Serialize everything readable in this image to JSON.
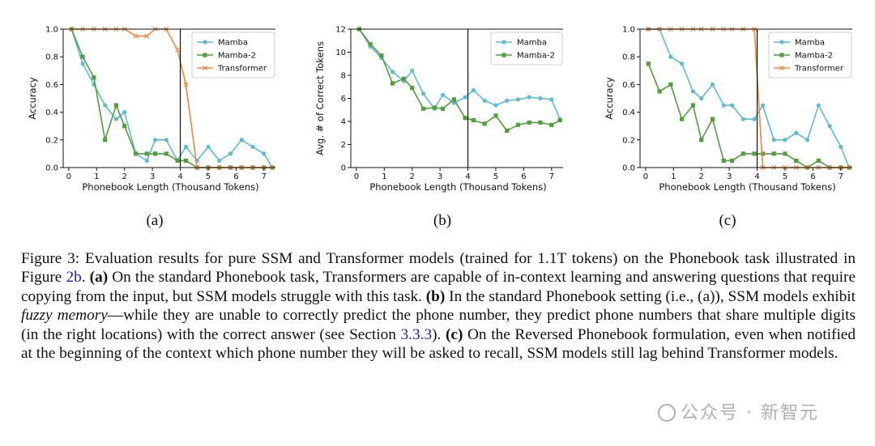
{
  "chart_data": [
    {
      "id": "a",
      "type": "line",
      "xlabel": "Phonebook Length (Thousand Tokens)",
      "ylabel": "Accuracy",
      "xlim": [
        -0.2,
        7.5
      ],
      "ylim": [
        0.0,
        1.0
      ],
      "xticks": [
        0,
        1,
        2,
        3,
        4,
        5,
        6,
        7
      ],
      "yticks": [
        0.0,
        0.2,
        0.4,
        0.6,
        0.8,
        1.0
      ],
      "ytick_labels": [
        "0.0",
        "0.2",
        "0.4",
        "0.6",
        "0.8",
        "1.0"
      ],
      "vline": 4,
      "legend": "top-right",
      "series": [
        {
          "name": "Mamba",
          "color": "#5bbcd6",
          "marker": "circle",
          "x": [
            0.1,
            0.5,
            0.9,
            1.3,
            1.7,
            2.0,
            2.4,
            2.8,
            3.1,
            3.5,
            3.9,
            4.2,
            4.6,
            5.0,
            5.4,
            5.8,
            6.2,
            6.6,
            7.0,
            7.3
          ],
          "y": [
            1.0,
            0.75,
            0.6,
            0.45,
            0.35,
            0.4,
            0.1,
            0.05,
            0.2,
            0.2,
            0.05,
            0.15,
            0.05,
            0.15,
            0.05,
            0.1,
            0.2,
            0.15,
            0.1,
            0.0
          ]
        },
        {
          "name": "Mamba-2",
          "color": "#4f9f3a",
          "marker": "square",
          "x": [
            0.1,
            0.5,
            0.9,
            1.3,
            1.7,
            2.0,
            2.4,
            2.8,
            3.1,
            3.5,
            3.9,
            4.2,
            4.6,
            5.0,
            5.4,
            5.8,
            6.2,
            6.6,
            7.0,
            7.3
          ],
          "y": [
            1.0,
            0.8,
            0.65,
            0.2,
            0.45,
            0.3,
            0.1,
            0.1,
            0.1,
            0.1,
            0.05,
            0.05,
            0.0,
            0.0,
            0.0,
            0.0,
            0.0,
            0.0,
            0.0,
            0.0
          ]
        },
        {
          "name": "Transformer",
          "color": "#f0883e",
          "marker": "x",
          "x": [
            0.1,
            0.5,
            0.9,
            1.3,
            1.7,
            2.0,
            2.4,
            2.8,
            3.1,
            3.5,
            3.9,
            4.2,
            4.6,
            5.0,
            5.4,
            5.8,
            6.2,
            6.6,
            7.0,
            7.3
          ],
          "y": [
            1.0,
            1.0,
            1.0,
            1.0,
            1.0,
            1.0,
            0.95,
            0.95,
            1.0,
            1.0,
            0.85,
            0.6,
            0.0,
            0.0,
            0.0,
            0.0,
            0.0,
            0.0,
            0.0,
            0.0
          ]
        }
      ],
      "sublabel": "(a)"
    },
    {
      "id": "b",
      "type": "line",
      "xlabel": "Phonebook Length (Thousand Tokens)",
      "ylabel": "Avg. # of Correct Tokens",
      "xlim": [
        -0.2,
        7.5
      ],
      "ylim": [
        0,
        12
      ],
      "xticks": [
        0,
        1,
        2,
        3,
        4,
        5,
        6,
        7
      ],
      "yticks": [
        0,
        2,
        4,
        6,
        8,
        10,
        12
      ],
      "ytick_labels": [
        "0",
        "2",
        "4",
        "6",
        "8",
        "10",
        "12"
      ],
      "vline": 4,
      "legend": "top-right",
      "series": [
        {
          "name": "Mamba",
          "color": "#5bbcd6",
          "marker": "circle",
          "x": [
            0.1,
            0.5,
            0.9,
            1.3,
            1.7,
            2.0,
            2.4,
            2.8,
            3.1,
            3.5,
            3.9,
            4.2,
            4.6,
            5.0,
            5.4,
            5.8,
            6.2,
            6.6,
            7.0,
            7.3
          ],
          "y": [
            12.0,
            10.5,
            9.5,
            8.3,
            7.5,
            8.4,
            6.4,
            5.1,
            6.3,
            5.6,
            6.1,
            6.7,
            5.8,
            5.4,
            5.8,
            5.9,
            6.1,
            6.0,
            5.9,
            4.2
          ]
        },
        {
          "name": "Mamba-2",
          "color": "#4f9f3a",
          "marker": "square",
          "x": [
            0.1,
            0.5,
            0.9,
            1.3,
            1.7,
            2.0,
            2.4,
            2.8,
            3.1,
            3.5,
            3.9,
            4.2,
            4.6,
            5.0,
            5.4,
            5.8,
            6.2,
            6.6,
            7.0,
            7.3
          ],
          "y": [
            12.0,
            10.7,
            9.7,
            7.3,
            7.7,
            6.9,
            5.1,
            5.2,
            5.1,
            5.9,
            4.3,
            4.1,
            3.8,
            4.5,
            3.2,
            3.7,
            3.9,
            3.9,
            3.7,
            4.1
          ]
        }
      ],
      "sublabel": "(b)"
    },
    {
      "id": "c",
      "type": "line",
      "xlabel": "Phonebook Length (Thousand Tokens)",
      "ylabel": "Accuracy",
      "xlim": [
        -0.2,
        7.5
      ],
      "ylim": [
        0.0,
        1.0
      ],
      "xticks": [
        0,
        1,
        2,
        3,
        4,
        5,
        6,
        7
      ],
      "yticks": [
        0.0,
        0.2,
        0.4,
        0.6,
        0.8,
        1.0
      ],
      "ytick_labels": [
        "0.0",
        "0.2",
        "0.4",
        "0.6",
        "0.8",
        "1.0"
      ],
      "vline": 4,
      "legend": "top-right",
      "series": [
        {
          "name": "Mamba",
          "color": "#5bbcd6",
          "marker": "circle",
          "x": [
            0.1,
            0.5,
            0.9,
            1.3,
            1.7,
            2.0,
            2.4,
            2.8,
            3.1,
            3.5,
            3.9,
            4.2,
            4.6,
            5.0,
            5.4,
            5.8,
            6.2,
            6.6,
            7.0,
            7.3
          ],
          "y": [
            1.0,
            1.0,
            0.8,
            0.75,
            0.55,
            0.5,
            0.6,
            0.45,
            0.45,
            0.35,
            0.35,
            0.45,
            0.2,
            0.2,
            0.25,
            0.2,
            0.45,
            0.3,
            0.15,
            0.0
          ]
        },
        {
          "name": "Mamba-2",
          "color": "#4f9f3a",
          "marker": "square",
          "x": [
            0.1,
            0.5,
            0.9,
            1.3,
            1.7,
            2.0,
            2.4,
            2.8,
            3.1,
            3.5,
            3.9,
            4.2,
            4.6,
            5.0,
            5.4,
            5.8,
            6.2,
            6.6,
            7.0,
            7.3
          ],
          "y": [
            0.75,
            0.55,
            0.6,
            0.35,
            0.45,
            0.2,
            0.35,
            0.05,
            0.05,
            0.1,
            0.1,
            0.1,
            0.1,
            0.1,
            0.05,
            0.0,
            0.05,
            0.0,
            0.0,
            0.0
          ]
        },
        {
          "name": "Transformer",
          "color": "#f0883e",
          "marker": "x",
          "x": [
            0.1,
            0.5,
            0.9,
            1.3,
            1.7,
            2.0,
            2.4,
            2.8,
            3.1,
            3.5,
            3.9,
            4.2,
            4.6,
            5.0,
            5.4,
            5.8,
            6.2,
            6.6,
            7.0,
            7.3
          ],
          "y": [
            1.0,
            1.0,
            1.0,
            1.0,
            1.0,
            1.0,
            1.0,
            1.0,
            1.0,
            1.0,
            1.0,
            0.0,
            0.0,
            0.0,
            0.0,
            0.0,
            0.0,
            0.0,
            0.0,
            0.0
          ]
        }
      ],
      "sublabel": "(c)"
    }
  ],
  "caption": {
    "fig_label": "Figure 3:",
    "text1": " Evaluation results for pure SSM and Transformer models (trained for 1.1T tokens) on the Phonebook task illustrated in Figure ",
    "ref_2b": "2b",
    "text2": ". ",
    "a_label": "(a)",
    "text3": " On the standard Phonebook task, Transformers are capable of in-context learning and answering questions that require copying from the input, but SSM models struggle with this task. ",
    "b_label": "(b)",
    "text4": " In the standard Phonebook setting (i.e., (a)), SSM models exhibit ",
    "fuzzy": "fuzzy memory",
    "text5": "—while they are unable to correctly predict the phone number, they predict phone numbers that share multiple digits (in the right locations) with the correct answer (see Section ",
    "ref_section": "3.3.3",
    "text6": "). ",
    "c_label": "(c)",
    "text7": " On the Reversed Phonebook formulation, even when notified at the beginning of the context which phone number they will be asked to recall, SSM models still lag behind Transformer models."
  },
  "watermark": {
    "text": "公众号 · 新智元"
  }
}
